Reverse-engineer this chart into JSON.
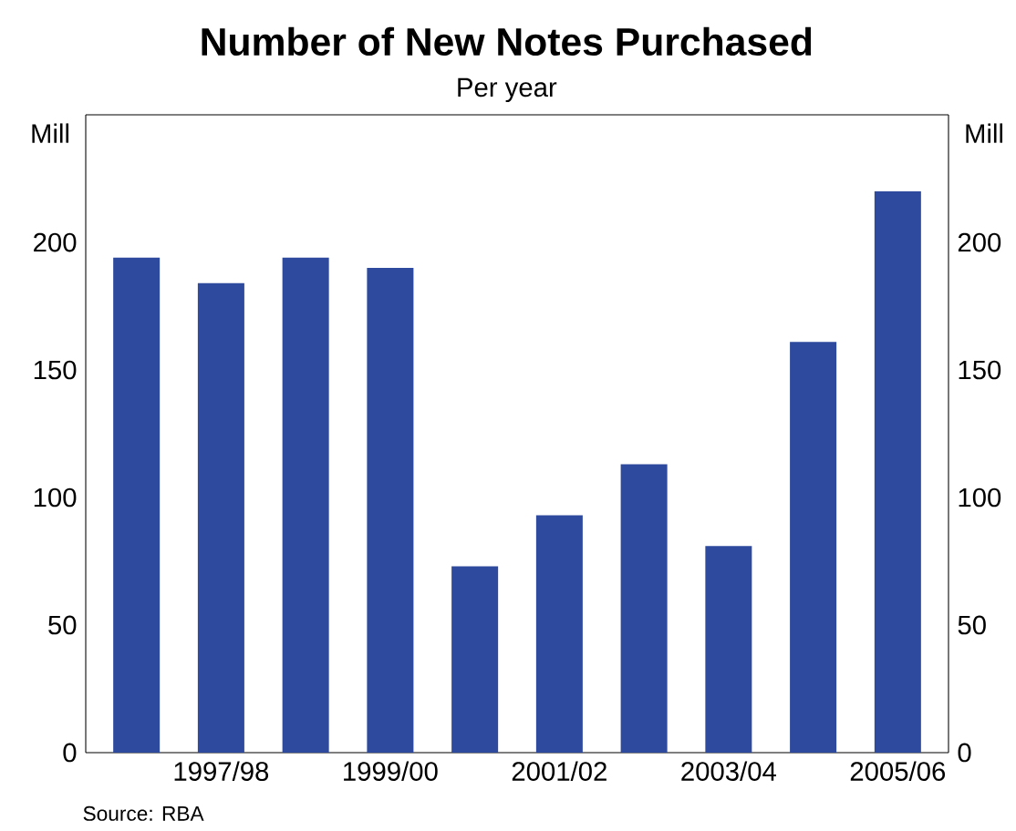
{
  "chart_data": {
    "type": "bar",
    "title": "Number of New Notes Purchased",
    "subtitle": "Per year",
    "ylabel": "Mill",
    "y2label": "Mill",
    "categories": [
      null,
      "1997/98",
      null,
      "1999/00",
      null,
      "2001/02",
      null,
      "2003/04",
      null,
      "2005/06"
    ],
    "values": [
      194,
      184,
      194,
      190,
      73,
      93,
      113,
      81,
      161,
      220
    ],
    "color": "#2e4a9e",
    "ylim": [
      0,
      250
    ],
    "yticks": [
      0,
      50,
      100,
      150,
      200
    ],
    "y2lim": [
      0,
      250
    ],
    "y2ticks": [
      0,
      50,
      100,
      150,
      200
    ],
    "annotations": [
      "Source: RBA"
    ],
    "grid": false
  }
}
